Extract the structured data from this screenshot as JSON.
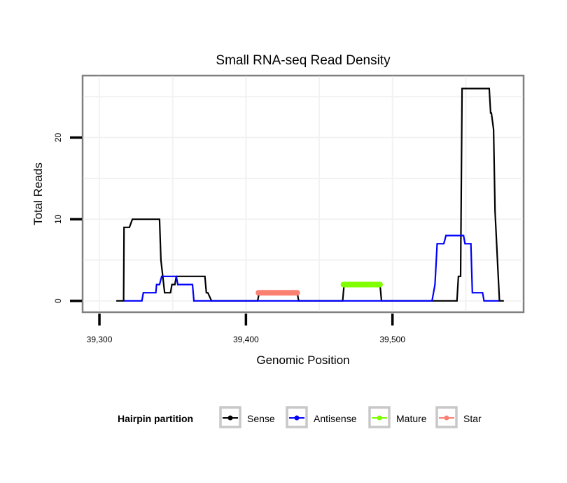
{
  "chart_data": {
    "type": "line",
    "title": "Small RNA-seq Read Density",
    "xlabel": "Genomic Position",
    "ylabel": "Total Reads",
    "xlim": [
      39289,
      39589
    ],
    "ylim": [
      -1.3,
      27.5
    ],
    "grid": true,
    "x_ticks": [
      39300,
      39400,
      39500
    ],
    "x_tick_labels": [
      "39,300",
      "39,400",
      "39,500"
    ],
    "y_ticks": [
      0,
      10,
      20
    ],
    "y_tick_labels": [
      "0",
      "10",
      "20"
    ],
    "legend": {
      "title": "Hairpin partition",
      "position": "bottom",
      "entries": [
        {
          "name": "Sense",
          "color": "#000000"
        },
        {
          "name": "Antisense",
          "color": "#0000ff"
        },
        {
          "name": "Mature",
          "color": "#7fff00"
        },
        {
          "name": "Star",
          "color": "#fa8072"
        }
      ]
    },
    "series": [
      {
        "name": "Sense",
        "color": "#000000",
        "points": [
          [
            39311.5,
            0
          ],
          [
            39316.5,
            0
          ],
          [
            39316.8,
            9
          ],
          [
            39320.5,
            9
          ],
          [
            39322.5,
            10
          ],
          [
            39341,
            10
          ],
          [
            39342,
            5
          ],
          [
            39344.5,
            1
          ],
          [
            39348.5,
            1
          ],
          [
            39349.5,
            2
          ],
          [
            39351.5,
            2
          ],
          [
            39352.5,
            3
          ],
          [
            39372,
            3
          ],
          [
            39373,
            1
          ],
          [
            39374,
            1
          ],
          [
            39376.5,
            0
          ],
          [
            39408,
            0
          ],
          [
            39409,
            1
          ],
          [
            39435,
            1
          ],
          [
            39436,
            0
          ],
          [
            39466,
            0
          ],
          [
            39467,
            2
          ],
          [
            39491.5,
            2
          ],
          [
            39492.5,
            0
          ],
          [
            39544,
            0
          ],
          [
            39545,
            3
          ],
          [
            39546.5,
            3
          ],
          [
            39547.5,
            26
          ],
          [
            39566,
            26
          ],
          [
            39567,
            23
          ],
          [
            39567.5,
            23
          ],
          [
            39569,
            21
          ],
          [
            39570,
            11
          ],
          [
            39573,
            0
          ],
          [
            39576,
            0
          ]
        ]
      },
      {
        "name": "Antisense",
        "color": "#0000ff",
        "points": [
          [
            39316.8,
            0
          ],
          [
            39329,
            0
          ],
          [
            39330,
            1
          ],
          [
            39338.5,
            1
          ],
          [
            39339,
            2
          ],
          [
            39341,
            2
          ],
          [
            39342.5,
            3
          ],
          [
            39352.5,
            3
          ],
          [
            39353.5,
            2
          ],
          [
            39363.5,
            2
          ],
          [
            39364.5,
            0
          ],
          [
            39527,
            0
          ],
          [
            39528,
            1
          ],
          [
            39529,
            2
          ],
          [
            39530.5,
            7
          ],
          [
            39535,
            7
          ],
          [
            39536.5,
            8
          ],
          [
            39548.5,
            8
          ],
          [
            39549.5,
            7
          ],
          [
            39553.5,
            7
          ],
          [
            39554.5,
            1
          ],
          [
            39561.5,
            1
          ],
          [
            39562.5,
            0
          ],
          [
            39572.5,
            0
          ]
        ]
      },
      {
        "name": "Mature",
        "color": "#7fff00",
        "points": [
          [
            39466.5,
            2
          ],
          [
            39491.5,
            2
          ]
        ]
      },
      {
        "name": "Star",
        "color": "#fa8072",
        "points": [
          [
            39408.5,
            1
          ],
          [
            39435,
            1
          ]
        ]
      }
    ]
  }
}
